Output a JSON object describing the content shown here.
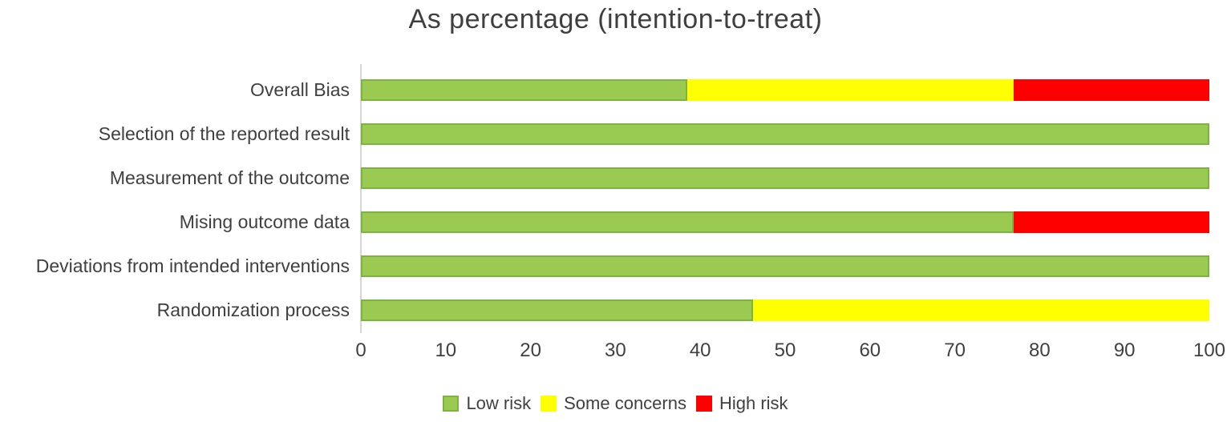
{
  "chart_data": {
    "type": "bar",
    "orientation": "horizontal",
    "stacked": true,
    "title": "As percentage (intention-to-treat)",
    "categories": [
      "Overall Bias",
      "Selection of the reported result",
      "Measurement of the outcome",
      "Mising outcome data",
      "Deviations from intended interventions",
      "Randomization process"
    ],
    "series": [
      {
        "name": "Low risk",
        "color": "#9bca53",
        "border_color": "#7db441",
        "values": [
          38.5,
          100,
          100,
          76.9,
          100,
          46.2
        ]
      },
      {
        "name": "Some concerns",
        "color": "#ffff00",
        "border_color": null,
        "values": [
          38.5,
          0,
          0,
          0,
          0,
          53.8
        ]
      },
      {
        "name": "High risk",
        "color": "#ff0000",
        "border_color": null,
        "values": [
          23.1,
          0,
          0,
          23.1,
          0,
          0
        ]
      }
    ],
    "xlim": [
      0,
      100
    ],
    "xticks": [
      0,
      10,
      20,
      30,
      40,
      50,
      60,
      70,
      80,
      90,
      100
    ],
    "grid": false,
    "legend_position": "bottom",
    "legend_entries": [
      "Low risk",
      "Some concerns",
      "High risk"
    ]
  },
  "colors": {
    "background": "#ffffff",
    "axis_line": "#d6d6d6",
    "text": "#404040",
    "low_risk": "#9bca53",
    "low_risk_border": "#7db441",
    "some_concerns": "#ffff00",
    "high_risk": "#ff0000"
  }
}
